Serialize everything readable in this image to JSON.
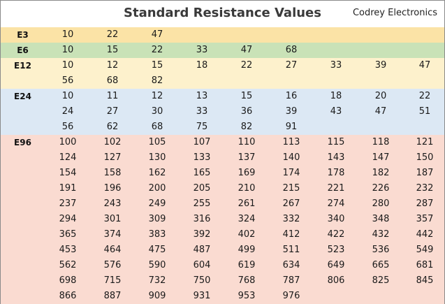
{
  "header": {
    "title": "Standard Resistance Values",
    "brand": "Codrey Electronics"
  },
  "series": [
    {
      "id": "e3",
      "label": "E3",
      "color": "#fbe3a6",
      "rows": [
        [
          "10",
          "22",
          "47"
        ]
      ]
    },
    {
      "id": "e6",
      "label": "E6",
      "color": "#c9e2b7",
      "rows": [
        [
          "10",
          "15",
          "22",
          "33",
          "47",
          "68"
        ]
      ]
    },
    {
      "id": "e12",
      "label": "E12",
      "color": "#fdf1cc",
      "rows": [
        [
          "10",
          "12",
          "15",
          "18",
          "22",
          "27",
          "33",
          "39",
          "47"
        ],
        [
          "56",
          "68",
          "82"
        ]
      ]
    },
    {
      "id": "e24",
      "label": "E24",
      "color": "#dce8f4",
      "rows": [
        [
          "10",
          "11",
          "12",
          "13",
          "15",
          "16",
          "18",
          "20",
          "22"
        ],
        [
          "24",
          "27",
          "30",
          "33",
          "36",
          "39",
          "43",
          "47",
          "51"
        ],
        [
          "56",
          "62",
          "68",
          "75",
          "82",
          "91"
        ]
      ]
    },
    {
      "id": "e96",
      "label": "E96",
      "color": "#fadbd1",
      "rows": [
        [
          "100",
          "102",
          "105",
          "107",
          "110",
          "113",
          "115",
          "118",
          "121"
        ],
        [
          "124",
          "127",
          "130",
          "133",
          "137",
          "140",
          "143",
          "147",
          "150"
        ],
        [
          "154",
          "158",
          "162",
          "165",
          "169",
          "174",
          "178",
          "182",
          "187"
        ],
        [
          "191",
          "196",
          "200",
          "205",
          "210",
          "215",
          "221",
          "226",
          "232"
        ],
        [
          "237",
          "243",
          "249",
          "255",
          "261",
          "267",
          "274",
          "280",
          "287"
        ],
        [
          "294",
          "301",
          "309",
          "316",
          "324",
          "332",
          "340",
          "348",
          "357"
        ],
        [
          "365",
          "374",
          "383",
          "392",
          "402",
          "412",
          "422",
          "432",
          "442"
        ],
        [
          "453",
          "464",
          "475",
          "487",
          "499",
          "511",
          "523",
          "536",
          "549"
        ],
        [
          "562",
          "576",
          "590",
          "604",
          "619",
          "634",
          "649",
          "665",
          "681"
        ],
        [
          "698",
          "715",
          "732",
          "750",
          "768",
          "787",
          "806",
          "825",
          "845"
        ],
        [
          "866",
          "887",
          "909",
          "931",
          "953",
          "976"
        ]
      ]
    }
  ]
}
